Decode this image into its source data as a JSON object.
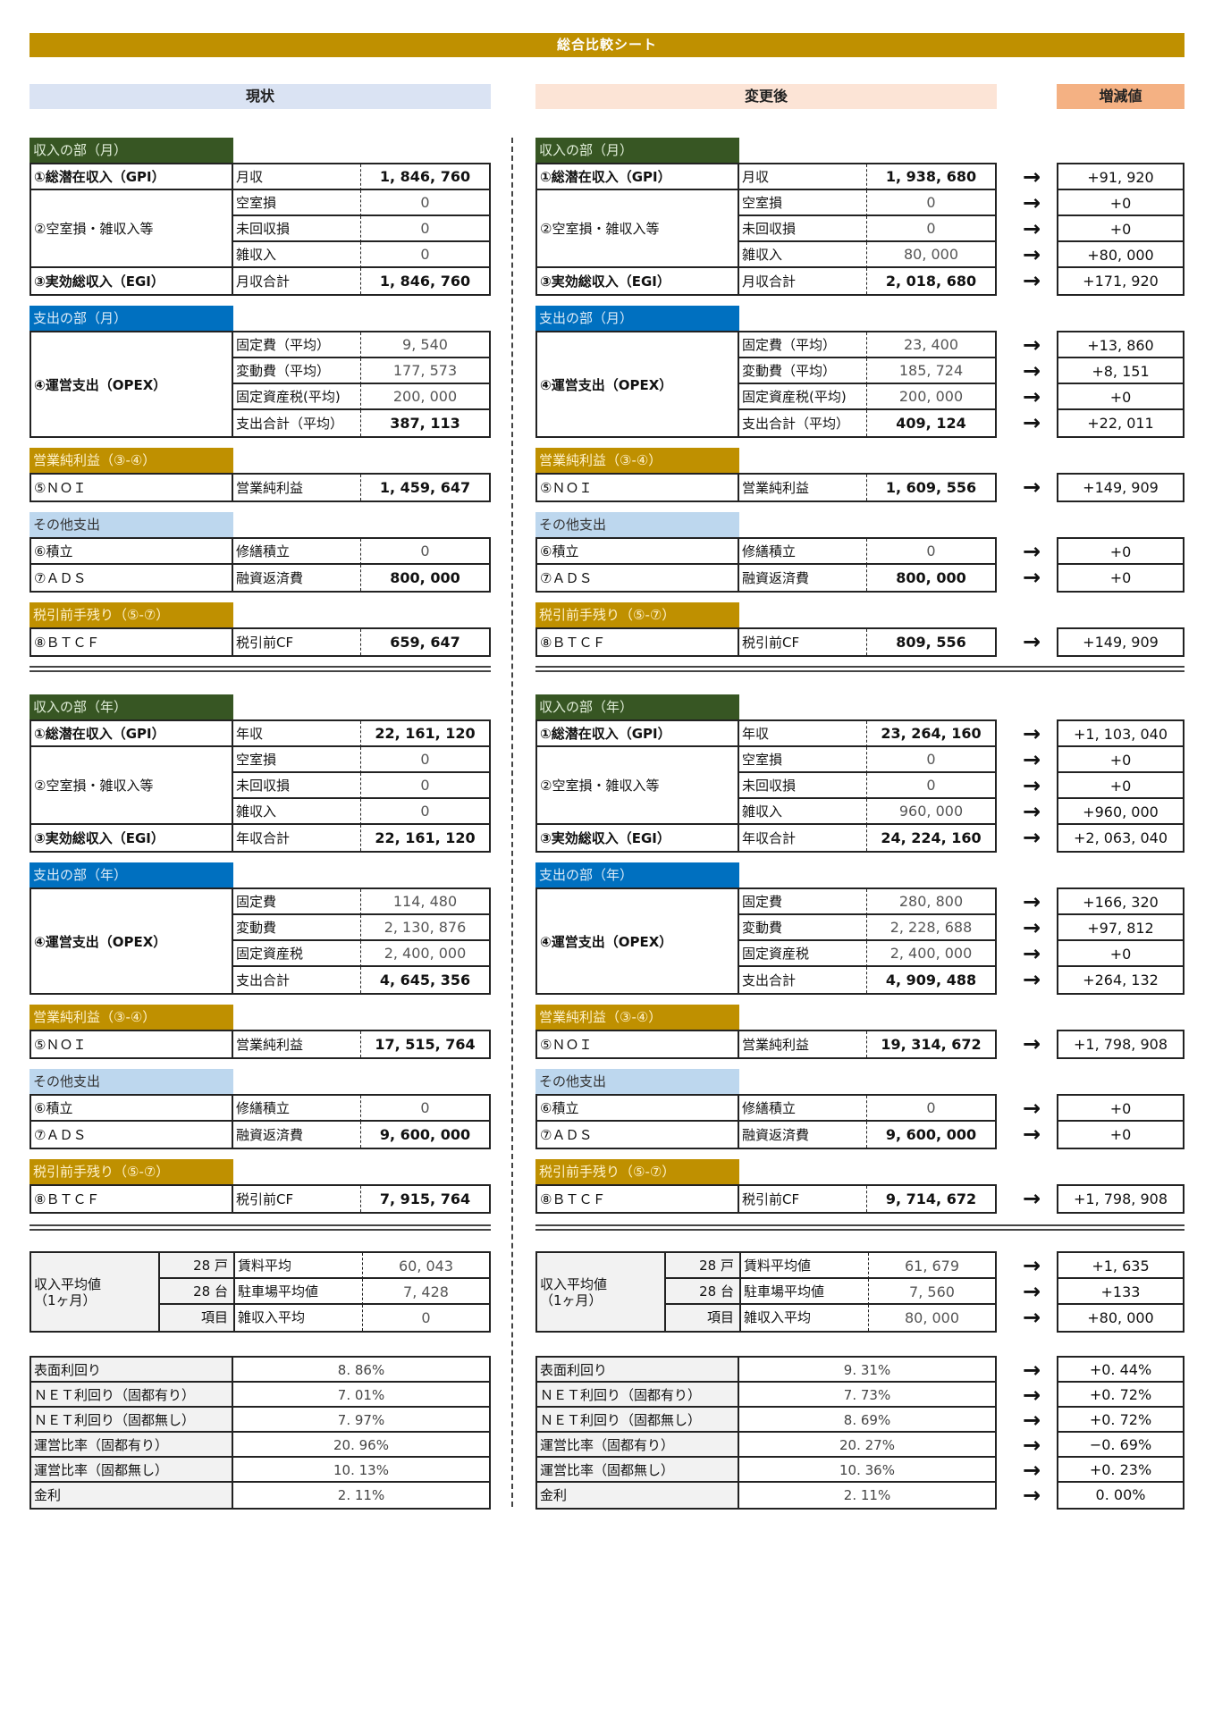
{
  "title": "総合比較シート",
  "headers": {
    "before": "現状",
    "after": "変更後",
    "delta": "増減値"
  },
  "colors": {
    "title": "#bf9000",
    "before": "#dae3f3",
    "after": "#fce4d6",
    "delta": "#f4b183",
    "income": "#375623",
    "expense": "#0070c0",
    "profit": "#bf9000",
    "other": "#bdd7ee"
  },
  "arrow": "→",
  "monthly": [
    {
      "title": "収入の部（月）",
      "color": "#375623",
      "text": "#e2efda",
      "groups": [
        {
          "label": "①総潜在収入（GPI）",
          "bold": true,
          "items": [
            {
              "item": "月収",
              "before": "1, 846, 760",
              "after": "1, 938, 680",
              "delta": "+91, 920",
              "strong": true
            }
          ]
        },
        {
          "label": "②空室損・雑収入等",
          "bold": false,
          "items": [
            {
              "item": "空室損",
              "before": "0",
              "after": "0",
              "delta": "+0"
            },
            {
              "item": "未回収損",
              "before": "0",
              "after": "0",
              "delta": "+0"
            },
            {
              "item": "雑収入",
              "before": "0",
              "after": "80, 000",
              "delta": "+80, 000"
            }
          ]
        },
        {
          "label": "③実効総収入（EGI）",
          "bold": true,
          "items": [
            {
              "item": "月収合計",
              "before": "1, 846, 760",
              "after": "2, 018, 680",
              "delta": "+171, 920",
              "strong": true
            }
          ]
        }
      ]
    },
    {
      "title": "支出の部（月）",
      "color": "#0070c0",
      "text": "#ddebf7",
      "groups": [
        {
          "label": "④運営支出（OPEX）",
          "bold": true,
          "items": [
            {
              "item": "固定費（平均）",
              "before": "9, 540",
              "after": "23, 400",
              "delta": "+13, 860"
            },
            {
              "item": "変動費（平均）",
              "before": "177, 573",
              "after": "185, 724",
              "delta": "+8, 151"
            },
            {
              "item": "固定資産税(平均)",
              "before": "200, 000",
              "after": "200, 000",
              "delta": "+0"
            },
            {
              "item": "支出合計（平均）",
              "before": "387, 113",
              "after": "409, 124",
              "delta": "+22, 011",
              "strong": true
            }
          ]
        }
      ]
    },
    {
      "title": "営業純利益（③-④）",
      "color": "#bf9000",
      "text": "#fff2cc",
      "groups": [
        {
          "label": "⑤ＮＯＩ",
          "bold": false,
          "items": [
            {
              "item": "営業純利益",
              "before": "1, 459, 647",
              "after": "1, 609, 556",
              "delta": "+149, 909",
              "strong": true
            }
          ]
        }
      ]
    },
    {
      "title": "その他支出",
      "color": "#bdd7ee",
      "text": "#333333",
      "groups": [
        {
          "label": "⑥積立",
          "bold": false,
          "items": [
            {
              "item": "修繕積立",
              "before": "0",
              "after": "0",
              "delta": "+0"
            }
          ]
        },
        {
          "label": "⑦ＡＤＳ",
          "bold": false,
          "items": [
            {
              "item": "融資返済費",
              "before": "800, 000",
              "after": "800, 000",
              "delta": "+0",
              "strong": true
            }
          ]
        }
      ]
    },
    {
      "title": "税引前手残り（⑤-⑦）",
      "color": "#bf9000",
      "text": "#fff2cc",
      "groups": [
        {
          "label": "⑧ＢＴＣＦ",
          "bold": false,
          "items": [
            {
              "item": "税引前CF",
              "before": "659, 647",
              "after": "809, 556",
              "delta": "+149, 909",
              "strong": true
            }
          ]
        }
      ]
    }
  ],
  "annual": [
    {
      "title": "収入の部（年）",
      "color": "#375623",
      "text": "#e2efda",
      "groups": [
        {
          "label": "①総潜在収入（GPI）",
          "bold": true,
          "items": [
            {
              "item": "年収",
              "before": "22, 161, 120",
              "after": "23, 264, 160",
              "delta": "+1, 103, 040",
              "strong": true
            }
          ]
        },
        {
          "label": "②空室損・雑収入等",
          "bold": false,
          "items": [
            {
              "item": "空室損",
              "before": "0",
              "after": "0",
              "delta": "+0"
            },
            {
              "item": "未回収損",
              "before": "0",
              "after": "0",
              "delta": "+0"
            },
            {
              "item": "雑収入",
              "before": "0",
              "after": "960, 000",
              "delta": "+960, 000"
            }
          ]
        },
        {
          "label": "③実効総収入（EGI）",
          "bold": true,
          "items": [
            {
              "item": "年収合計",
              "before": "22, 161, 120",
              "after": "24, 224, 160",
              "delta": "+2, 063, 040",
              "strong": true
            }
          ]
        }
      ]
    },
    {
      "title": "支出の部（年）",
      "color": "#0070c0",
      "text": "#ddebf7",
      "groups": [
        {
          "label": "④運営支出（OPEX）",
          "bold": true,
          "items": [
            {
              "item": "固定費",
              "before": "114, 480",
              "after": "280, 800",
              "delta": "+166, 320"
            },
            {
              "item": "変動費",
              "before": "2, 130, 876",
              "after": "2, 228, 688",
              "delta": "+97, 812"
            },
            {
              "item": "固定資産税",
              "before": "2, 400, 000",
              "after": "2, 400, 000",
              "delta": "+0"
            },
            {
              "item": "支出合計",
              "before": "4, 645, 356",
              "after": "4, 909, 488",
              "delta": "+264, 132",
              "strong": true
            }
          ]
        }
      ]
    },
    {
      "title": "営業純利益（③-④）",
      "color": "#bf9000",
      "text": "#fff2cc",
      "groups": [
        {
          "label": "⑤ＮＯＩ",
          "bold": false,
          "items": [
            {
              "item": "営業純利益",
              "before": "17, 515, 764",
              "after": "19, 314, 672",
              "delta": "+1, 798, 908",
              "strong": true
            }
          ]
        }
      ]
    },
    {
      "title": "その他支出",
      "color": "#bdd7ee",
      "text": "#333333",
      "groups": [
        {
          "label": "⑥積立",
          "bold": false,
          "items": [
            {
              "item": "修繕積立",
              "before": "0",
              "after": "0",
              "delta": "+0"
            }
          ]
        },
        {
          "label": "⑦ＡＤＳ",
          "bold": false,
          "items": [
            {
              "item": "融資返済費",
              "before": "9, 600, 000",
              "after": "9, 600, 000",
              "delta": "+0",
              "strong": true
            }
          ]
        }
      ]
    },
    {
      "title": "税引前手残り（⑤-⑦）",
      "color": "#bf9000",
      "text": "#fff2cc",
      "groups": [
        {
          "label": "⑧ＢＴＣＦ",
          "bold": false,
          "items": [
            {
              "item": "税引前CF",
              "before": "7, 915, 764",
              "after": "9, 714, 672",
              "delta": "+1, 798, 908",
              "strong": true
            }
          ]
        }
      ]
    }
  ],
  "average": {
    "label": "収入平均値\n（1ヶ月）",
    "rows": [
      {
        "count": "28 戸",
        "item_before": "賃料平均",
        "item_after": "賃料平均値",
        "before": "60, 043",
        "after": "61, 679",
        "delta": "+1, 635"
      },
      {
        "count": "28 台",
        "item_before": "駐車場平均値",
        "item_after": "駐車場平均値",
        "before": "7, 428",
        "after": "7, 560",
        "delta": "+133"
      },
      {
        "count": "項目",
        "item_before": "雑収入平均",
        "item_after": "雑収入平均",
        "before": "0",
        "after": "80, 000",
        "delta": "+80, 000"
      }
    ]
  },
  "ratios": [
    {
      "label": "表面利回り",
      "before": "8. 86%",
      "after": "9. 31%",
      "delta": "+0. 44%"
    },
    {
      "label": "ＮＥＴ利回り（固都有り）",
      "before": "7. 01%",
      "after": "7. 73%",
      "delta": "+0. 72%"
    },
    {
      "label": "ＮＥＴ利回り（固都無し）",
      "before": "7. 97%",
      "after": "8. 69%",
      "delta": "+0. 72%"
    },
    {
      "label": "運営比率（固都有り）",
      "before": "20. 96%",
      "after": "20. 27%",
      "delta": "−0. 69%"
    },
    {
      "label": "運営比率（固都無し）",
      "before": "10. 13%",
      "after": "10. 36%",
      "delta": "+0. 23%"
    },
    {
      "label": "金利",
      "before": "2. 11%",
      "after": "2. 11%",
      "delta": "0. 00%"
    }
  ]
}
